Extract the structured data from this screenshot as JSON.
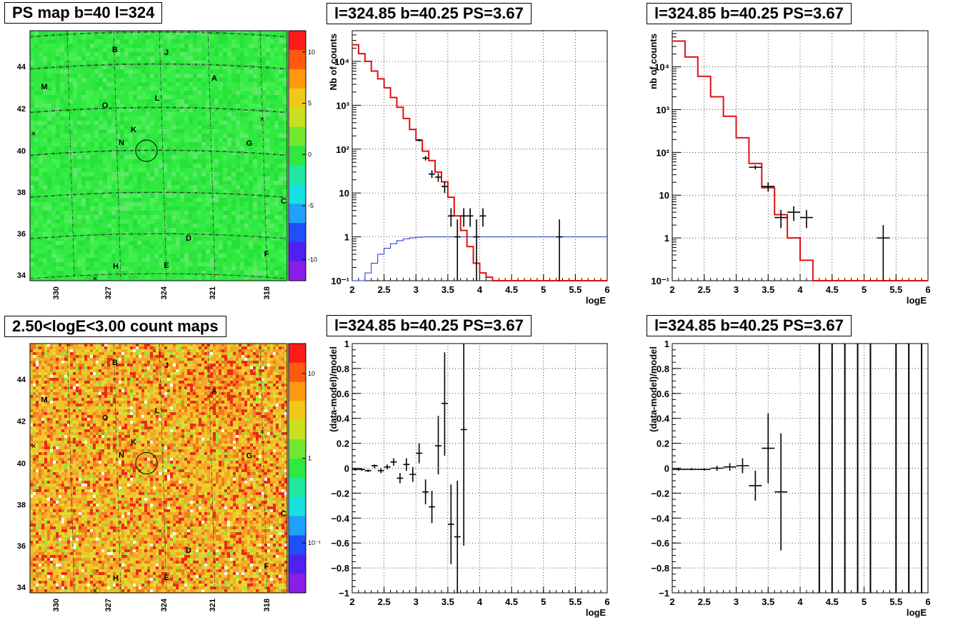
{
  "titles": {
    "map_top": "PS map b=40 l=324",
    "map_bottom": "2.50<logE<3.00 count maps",
    "spec1": "l=324.85 b=40.25 PS=3.67",
    "spec2": "l=324.85 b=40.25 PS=3.67",
    "res1": "l=324.85 b=40.25 PS=3.67",
    "res2": "l=324.85 b=40.25 PS=3.67"
  },
  "map": {
    "lat_ticks": [
      "44",
      "42",
      "40",
      "38",
      "36",
      "34"
    ],
    "lon_ticks": [
      "330",
      "327",
      "324",
      "321",
      "318"
    ],
    "sources": [
      "A",
      "B",
      "C",
      "D",
      "E",
      "F",
      "G",
      "H",
      "J",
      "K",
      "L",
      "M",
      "N",
      "O"
    ],
    "colorbar_top": [
      "10",
      "5",
      "0",
      "-5",
      "-10"
    ],
    "colorbar_bottom": [
      "10",
      "1",
      "10⁻¹"
    ],
    "colors": {
      "field_top": "#2fe840",
      "field_bottom": "#f3a12a"
    }
  },
  "chart_data": [
    {
      "type": "line",
      "name": "spectrum-1",
      "xlabel": "logE",
      "ylabel": "Nb of counts",
      "xlim": [
        2,
        6
      ],
      "ylim": [
        0.1,
        50000
      ],
      "yscale": "log",
      "x_ticks": [
        "2",
        "2.5",
        "3",
        "3.5",
        "4",
        "4.5",
        "5",
        "5.5",
        "6"
      ],
      "y_ticks": [
        "10⁻¹",
        "1",
        "10",
        "10²",
        "10³",
        "10⁴"
      ],
      "grid": true,
      "model_steps": {
        "edges": [
          2.0,
          2.1,
          2.2,
          2.3,
          2.4,
          2.5,
          2.6,
          2.7,
          2.8,
          2.9,
          3.0,
          3.1,
          3.2,
          3.3,
          3.4,
          3.5,
          3.6,
          3.7,
          3.8,
          3.9,
          4.0,
          4.1,
          4.2,
          6.0
        ],
        "values": [
          24000,
          15000,
          10000,
          6000,
          4000,
          2500,
          1500,
          900,
          500,
          280,
          160,
          90,
          55,
          30,
          18,
          8,
          3,
          1.4,
          0.6,
          0.25,
          0.15,
          0.12,
          0.1
        ]
      },
      "background_steps": {
        "edges": [
          2.0,
          2.1,
          2.2,
          2.3,
          2.4,
          2.5,
          2.6,
          2.7,
          2.8,
          2.9,
          3.0,
          3.1,
          3.2,
          6.0
        ],
        "values": [
          0.08,
          0.1,
          0.15,
          0.25,
          0.4,
          0.55,
          0.7,
          0.82,
          0.9,
          0.95,
          0.98,
          1.0,
          1.0
        ]
      },
      "points": [
        {
          "x": 3.05,
          "y": 160,
          "xerr": 0.05,
          "ylo": 150,
          "yhi": 170
        },
        {
          "x": 3.15,
          "y": 62,
          "xerr": 0.05,
          "ylo": 55,
          "yhi": 70
        },
        {
          "x": 3.25,
          "y": 27,
          "xerr": 0.05,
          "ylo": 22,
          "yhi": 33
        },
        {
          "x": 3.35,
          "y": 23,
          "xerr": 0.05,
          "ylo": 18,
          "yhi": 28
        },
        {
          "x": 3.45,
          "y": 14,
          "xerr": 0.05,
          "ylo": 10,
          "yhi": 18
        },
        {
          "x": 3.55,
          "y": 3,
          "xerr": 0.05,
          "ylo": 1.7,
          "yhi": 4.5
        },
        {
          "x": 3.65,
          "y": 1,
          "xerr": 0.05,
          "ylo": 0.1,
          "yhi": 2.5
        },
        {
          "x": 3.75,
          "y": 3,
          "xerr": 0.05,
          "ylo": 1.7,
          "yhi": 4.5
        },
        {
          "x": 3.85,
          "y": 3,
          "xerr": 0.05,
          "ylo": 1.7,
          "yhi": 4.5
        },
        {
          "x": 3.95,
          "y": 1,
          "xerr": 0.05,
          "ylo": 0.1,
          "yhi": 2.5
        },
        {
          "x": 4.05,
          "y": 3,
          "xerr": 0.05,
          "ylo": 1.7,
          "yhi": 4.5
        },
        {
          "x": 5.25,
          "y": 1,
          "xerr": 0.05,
          "ylo": 0.1,
          "yhi": 2.5
        }
      ]
    },
    {
      "type": "line",
      "name": "spectrum-2",
      "xlabel": "logE",
      "ylabel": "nb of counts",
      "xlim": [
        2,
        6
      ],
      "ylim": [
        0.1,
        70000
      ],
      "yscale": "log",
      "x_ticks": [
        "2",
        "2.5",
        "3",
        "3.5",
        "4",
        "4.5",
        "5",
        "5.5",
        "6"
      ],
      "y_ticks": [
        "10⁻¹",
        "1",
        "10",
        "10²",
        "10³",
        "10⁴"
      ],
      "grid": true,
      "model_steps": {
        "edges": [
          2.0,
          2.2,
          2.4,
          2.6,
          2.8,
          3.0,
          3.2,
          3.4,
          3.6,
          3.8,
          4.0,
          4.2,
          6.0
        ],
        "values": [
          40000,
          17000,
          6000,
          2000,
          700,
          220,
          55,
          15,
          3.5,
          1.0,
          0.3,
          0.1
        ]
      },
      "points": [
        {
          "x": 3.3,
          "y": 45,
          "xerr": 0.1,
          "ylo": 40,
          "yhi": 50
        },
        {
          "x": 3.5,
          "y": 16,
          "xerr": 0.1,
          "ylo": 12,
          "yhi": 20
        },
        {
          "x": 3.7,
          "y": 3,
          "xerr": 0.1,
          "ylo": 1.7,
          "yhi": 4.5
        },
        {
          "x": 3.9,
          "y": 4,
          "xerr": 0.1,
          "ylo": 2.5,
          "yhi": 5.5
        },
        {
          "x": 4.1,
          "y": 3,
          "xerr": 0.1,
          "ylo": 1.7,
          "yhi": 4.5
        },
        {
          "x": 5.3,
          "y": 1,
          "xerr": 0.1,
          "ylo": 0.1,
          "yhi": 2.0
        }
      ]
    },
    {
      "type": "scatter",
      "name": "residuals-1",
      "xlabel": "logE",
      "ylabel": "(data-model)/model",
      "xlim": [
        2,
        6
      ],
      "ylim": [
        -1,
        1
      ],
      "x_ticks": [
        "2",
        "2.5",
        "3",
        "3.5",
        "4",
        "4.5",
        "5",
        "5.5",
        "6"
      ],
      "y_ticks": [
        "−1",
        "−0.8",
        "−0.6",
        "−0.4",
        "−0.2",
        "0",
        "0.2",
        "0.4",
        "0.6",
        "0.8",
        "1"
      ],
      "grid": true,
      "points": [
        {
          "x": 2.05,
          "y": -0.01,
          "xerr": 0.05,
          "ylo": -0.02,
          "yhi": 0.0
        },
        {
          "x": 2.15,
          "y": -0.01,
          "xerr": 0.05,
          "ylo": -0.02,
          "yhi": 0.0
        },
        {
          "x": 2.25,
          "y": -0.02,
          "xerr": 0.05,
          "ylo": -0.03,
          "yhi": -0.01
        },
        {
          "x": 2.35,
          "y": 0.02,
          "xerr": 0.05,
          "ylo": 0.0,
          "yhi": 0.03
        },
        {
          "x": 2.45,
          "y": -0.02,
          "xerr": 0.05,
          "ylo": -0.04,
          "yhi": 0.0
        },
        {
          "x": 2.55,
          "y": 0.01,
          "xerr": 0.05,
          "ylo": -0.01,
          "yhi": 0.03
        },
        {
          "x": 2.65,
          "y": 0.05,
          "xerr": 0.05,
          "ylo": 0.02,
          "yhi": 0.08
        },
        {
          "x": 2.75,
          "y": -0.08,
          "xerr": 0.05,
          "ylo": -0.12,
          "yhi": -0.04
        },
        {
          "x": 2.85,
          "y": 0.03,
          "xerr": 0.05,
          "ylo": -0.02,
          "yhi": 0.08
        },
        {
          "x": 2.95,
          "y": -0.05,
          "xerr": 0.05,
          "ylo": -0.11,
          "yhi": 0.01
        },
        {
          "x": 3.05,
          "y": 0.12,
          "xerr": 0.05,
          "ylo": 0.04,
          "yhi": 0.2
        },
        {
          "x": 3.15,
          "y": -0.19,
          "xerr": 0.05,
          "ylo": -0.29,
          "yhi": -0.09
        },
        {
          "x": 3.25,
          "y": -0.31,
          "xerr": 0.05,
          "ylo": -0.44,
          "yhi": -0.18
        },
        {
          "x": 3.35,
          "y": 0.18,
          "xerr": 0.05,
          "ylo": -0.05,
          "yhi": 0.42
        },
        {
          "x": 3.45,
          "y": 0.52,
          "xerr": 0.05,
          "ylo": 0.1,
          "yhi": 0.93
        },
        {
          "x": 3.55,
          "y": -0.45,
          "xerr": 0.05,
          "ylo": -0.77,
          "yhi": -0.13
        },
        {
          "x": 3.65,
          "y": -0.55,
          "xerr": 0.05,
          "ylo": -1.0,
          "yhi": -0.1
        },
        {
          "x": 3.75,
          "y": 0.31,
          "xerr": 0.05,
          "ylo": -0.62,
          "yhi": 1.0
        }
      ]
    },
    {
      "type": "scatter",
      "name": "residuals-2",
      "xlabel": "logE",
      "ylabel": "(data-model)/model",
      "xlim": [
        2,
        6
      ],
      "ylim": [
        -1,
        1
      ],
      "x_ticks": [
        "2",
        "2.5",
        "3",
        "3.5",
        "4",
        "4.5",
        "5",
        "5.5",
        "6"
      ],
      "y_ticks": [
        "−1",
        "−0.8",
        "−0.6",
        "−0.4",
        "−0.2",
        "0",
        "0.2",
        "0.4",
        "0.6",
        "0.8",
        "1"
      ],
      "grid": true,
      "points": [
        {
          "x": 2.1,
          "y": -0.01,
          "xerr": 0.1,
          "ylo": -0.02,
          "yhi": 0.0
        },
        {
          "x": 2.3,
          "y": -0.01,
          "xerr": 0.1,
          "ylo": -0.015,
          "yhi": 0.0
        },
        {
          "x": 2.5,
          "y": -0.01,
          "xerr": 0.1,
          "ylo": -0.02,
          "yhi": 0.0
        },
        {
          "x": 2.7,
          "y": 0.0,
          "xerr": 0.1,
          "ylo": -0.02,
          "yhi": 0.02
        },
        {
          "x": 2.9,
          "y": 0.01,
          "xerr": 0.1,
          "ylo": -0.02,
          "yhi": 0.04
        },
        {
          "x": 3.1,
          "y": 0.02,
          "xerr": 0.1,
          "ylo": -0.04,
          "yhi": 0.08
        },
        {
          "x": 3.3,
          "y": -0.14,
          "xerr": 0.1,
          "ylo": -0.26,
          "yhi": -0.02
        },
        {
          "x": 3.5,
          "y": 0.16,
          "xerr": 0.1,
          "ylo": -0.12,
          "yhi": 0.44
        },
        {
          "x": 3.7,
          "y": -0.19,
          "xerr": 0.1,
          "ylo": -0.66,
          "yhi": 0.28
        }
      ],
      "full_bars_x": [
        4.3,
        4.5,
        4.7,
        4.9,
        5.1,
        5.5,
        5.7,
        5.9
      ]
    }
  ]
}
